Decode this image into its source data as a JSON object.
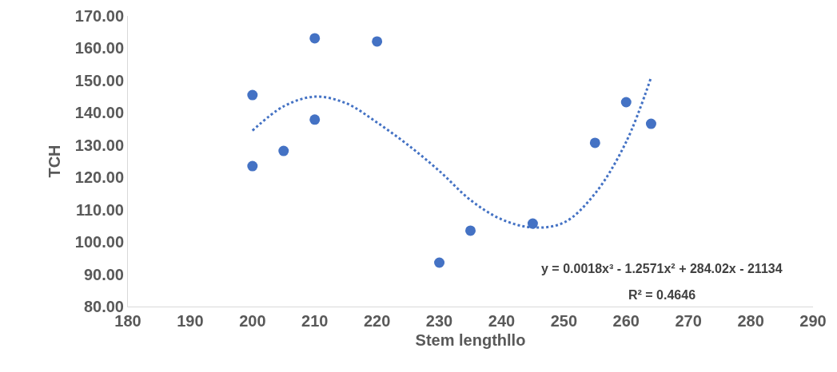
{
  "chart_data": {
    "type": "scatter",
    "xlabel": "Stem lengthllo",
    "ylabel": "TCH",
    "grid": false,
    "legend": false,
    "xlim": [
      180,
      290
    ],
    "xticks": [
      180,
      190,
      200,
      210,
      220,
      230,
      240,
      250,
      260,
      270,
      280,
      290
    ],
    "ylim": [
      80,
      170
    ],
    "yticks": [
      {
        "value": 80,
        "label": "80.00"
      },
      {
        "value": 90,
        "label": "90.00"
      },
      {
        "value": 100,
        "label": "100.00"
      },
      {
        "value": 110,
        "label": "110.00"
      },
      {
        "value": 120,
        "label": "120.00"
      },
      {
        "value": 130,
        "label": "130.00"
      },
      {
        "value": 140,
        "label": "140.00"
      },
      {
        "value": 150,
        "label": "150.00"
      },
      {
        "value": 160,
        "label": "160.00"
      },
      {
        "value": 170,
        "label": "170.00"
      }
    ],
    "annotations": [
      "y = 0.0018x³ - 1.2571x² + 284.02x - 21134",
      "R² = 0.4646"
    ],
    "series": [
      {
        "color": "#4472c4",
        "marker": "circle",
        "x": [
          200,
          200,
          205,
          210,
          210,
          220,
          230,
          235,
          245,
          255,
          260,
          264
        ],
        "values": [
          145.5,
          123.5,
          128.2,
          163.1,
          137.9,
          162.1,
          93.6,
          103.5,
          105.7,
          130.7,
          143.3,
          136.6
        ]
      },
      {
        "type": "line",
        "color": "#4472c4",
        "line_style": "dotted",
        "marker": "none",
        "x": [
          200,
          205,
          210,
          215,
          220,
          225,
          230,
          235,
          240,
          245,
          250,
          255,
          260,
          264
        ],
        "values": [
          134.5,
          142,
          145,
          143,
          137,
          130,
          122,
          113,
          107,
          104.5,
          106,
          115,
          131,
          151
        ]
      }
    ]
  }
}
